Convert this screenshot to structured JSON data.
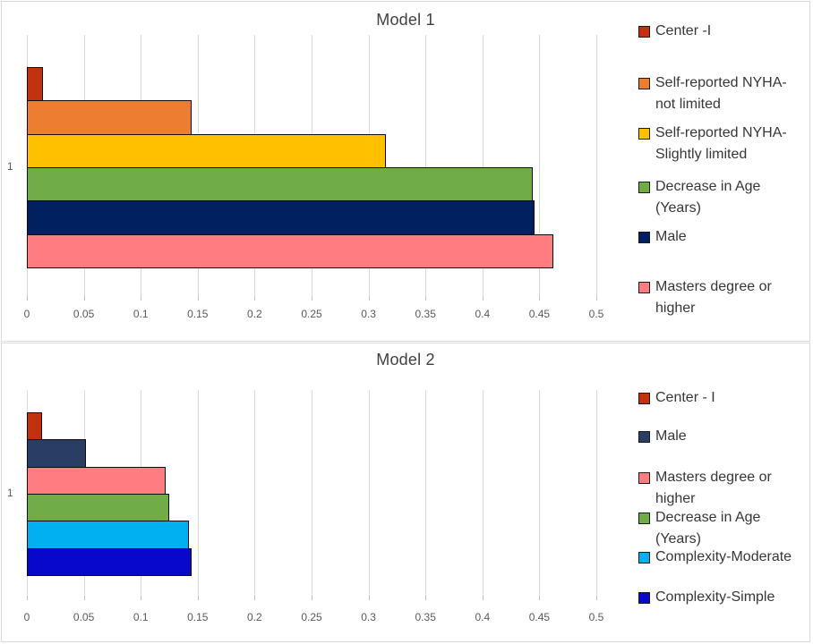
{
  "page": {
    "background": "#FFFFFF",
    "chart_border_color": "#D9D9D9",
    "gridline_color": "#D9D9D9",
    "axis_text_color": "#595959",
    "title_text_color": "#404040"
  },
  "chart_data": [
    {
      "type": "bar",
      "orientation": "horizontal",
      "title": "Model 1",
      "category_label": "1",
      "categories": [
        "1"
      ],
      "xlim": [
        0,
        0.5
      ],
      "x_tick_labels": [
        "0",
        "0.05",
        "0.1",
        "0.15",
        "0.2",
        "0.25",
        "0.3",
        "0.35",
        "0.4",
        "0.45",
        "0.5"
      ],
      "grid": true,
      "legend_position": "right",
      "series": [
        {
          "name": "Center -I",
          "lines": [
            "Center -I"
          ],
          "value": 0.014,
          "color": "#C2330D"
        },
        {
          "name": "Self-reported NYHA-not limited",
          "lines": [
            "Self-reported NYHA-",
            "not limited"
          ],
          "value": 0.145,
          "color": "#ED7D31"
        },
        {
          "name": "Self-reported NYHA-Slightly limited",
          "lines": [
            "Self-reported NYHA-",
            "Slightly limited"
          ],
          "value": 0.315,
          "color": "#FFC000"
        },
        {
          "name": "Decrease in Age (Years)",
          "lines": [
            "Decrease in Age",
            "(Years)"
          ],
          "value": 0.444,
          "color": "#70AD47"
        },
        {
          "name": "Male",
          "lines": [
            "Male"
          ],
          "value": 0.446,
          "color": "#002060"
        },
        {
          "name": "Masters degree or higher",
          "lines": [
            "Masters degree or",
            "higher"
          ],
          "value": 0.462,
          "color": "#FF7C80"
        }
      ]
    },
    {
      "type": "bar",
      "orientation": "horizontal",
      "title": "Model 2",
      "category_label": "1",
      "categories": [
        "1"
      ],
      "xlim": [
        0,
        0.5
      ],
      "x_tick_labels": [
        "0",
        "0.05",
        "0.1",
        "0.15",
        "0.2",
        "0.25",
        "0.3",
        "0.35",
        "0.4",
        "0.45",
        "0.5"
      ],
      "grid": true,
      "legend_position": "right",
      "series": [
        {
          "name": "Center - I",
          "lines": [
            "Center - I"
          ],
          "value": 0.013,
          "color": "#C2330D"
        },
        {
          "name": "Male",
          "lines": [
            "Male"
          ],
          "value": 0.052,
          "color": "#2A3E63"
        },
        {
          "name": "Masters degree or higher",
          "lines": [
            "Masters degree or",
            "higher"
          ],
          "value": 0.122,
          "color": "#FF7C80"
        },
        {
          "name": "Decrease in Age (Years)",
          "lines": [
            "Decrease in Age",
            "(Years)"
          ],
          "value": 0.125,
          "color": "#70AD47"
        },
        {
          "name": "Complexity-Moderate",
          "lines": [
            "Complexity-Moderate"
          ],
          "value": 0.142,
          "color": "#00B0F0"
        },
        {
          "name": "Complexity-Simple",
          "lines": [
            "Complexity-Simple"
          ],
          "value": 0.145,
          "color": "#0808CC"
        }
      ]
    }
  ]
}
